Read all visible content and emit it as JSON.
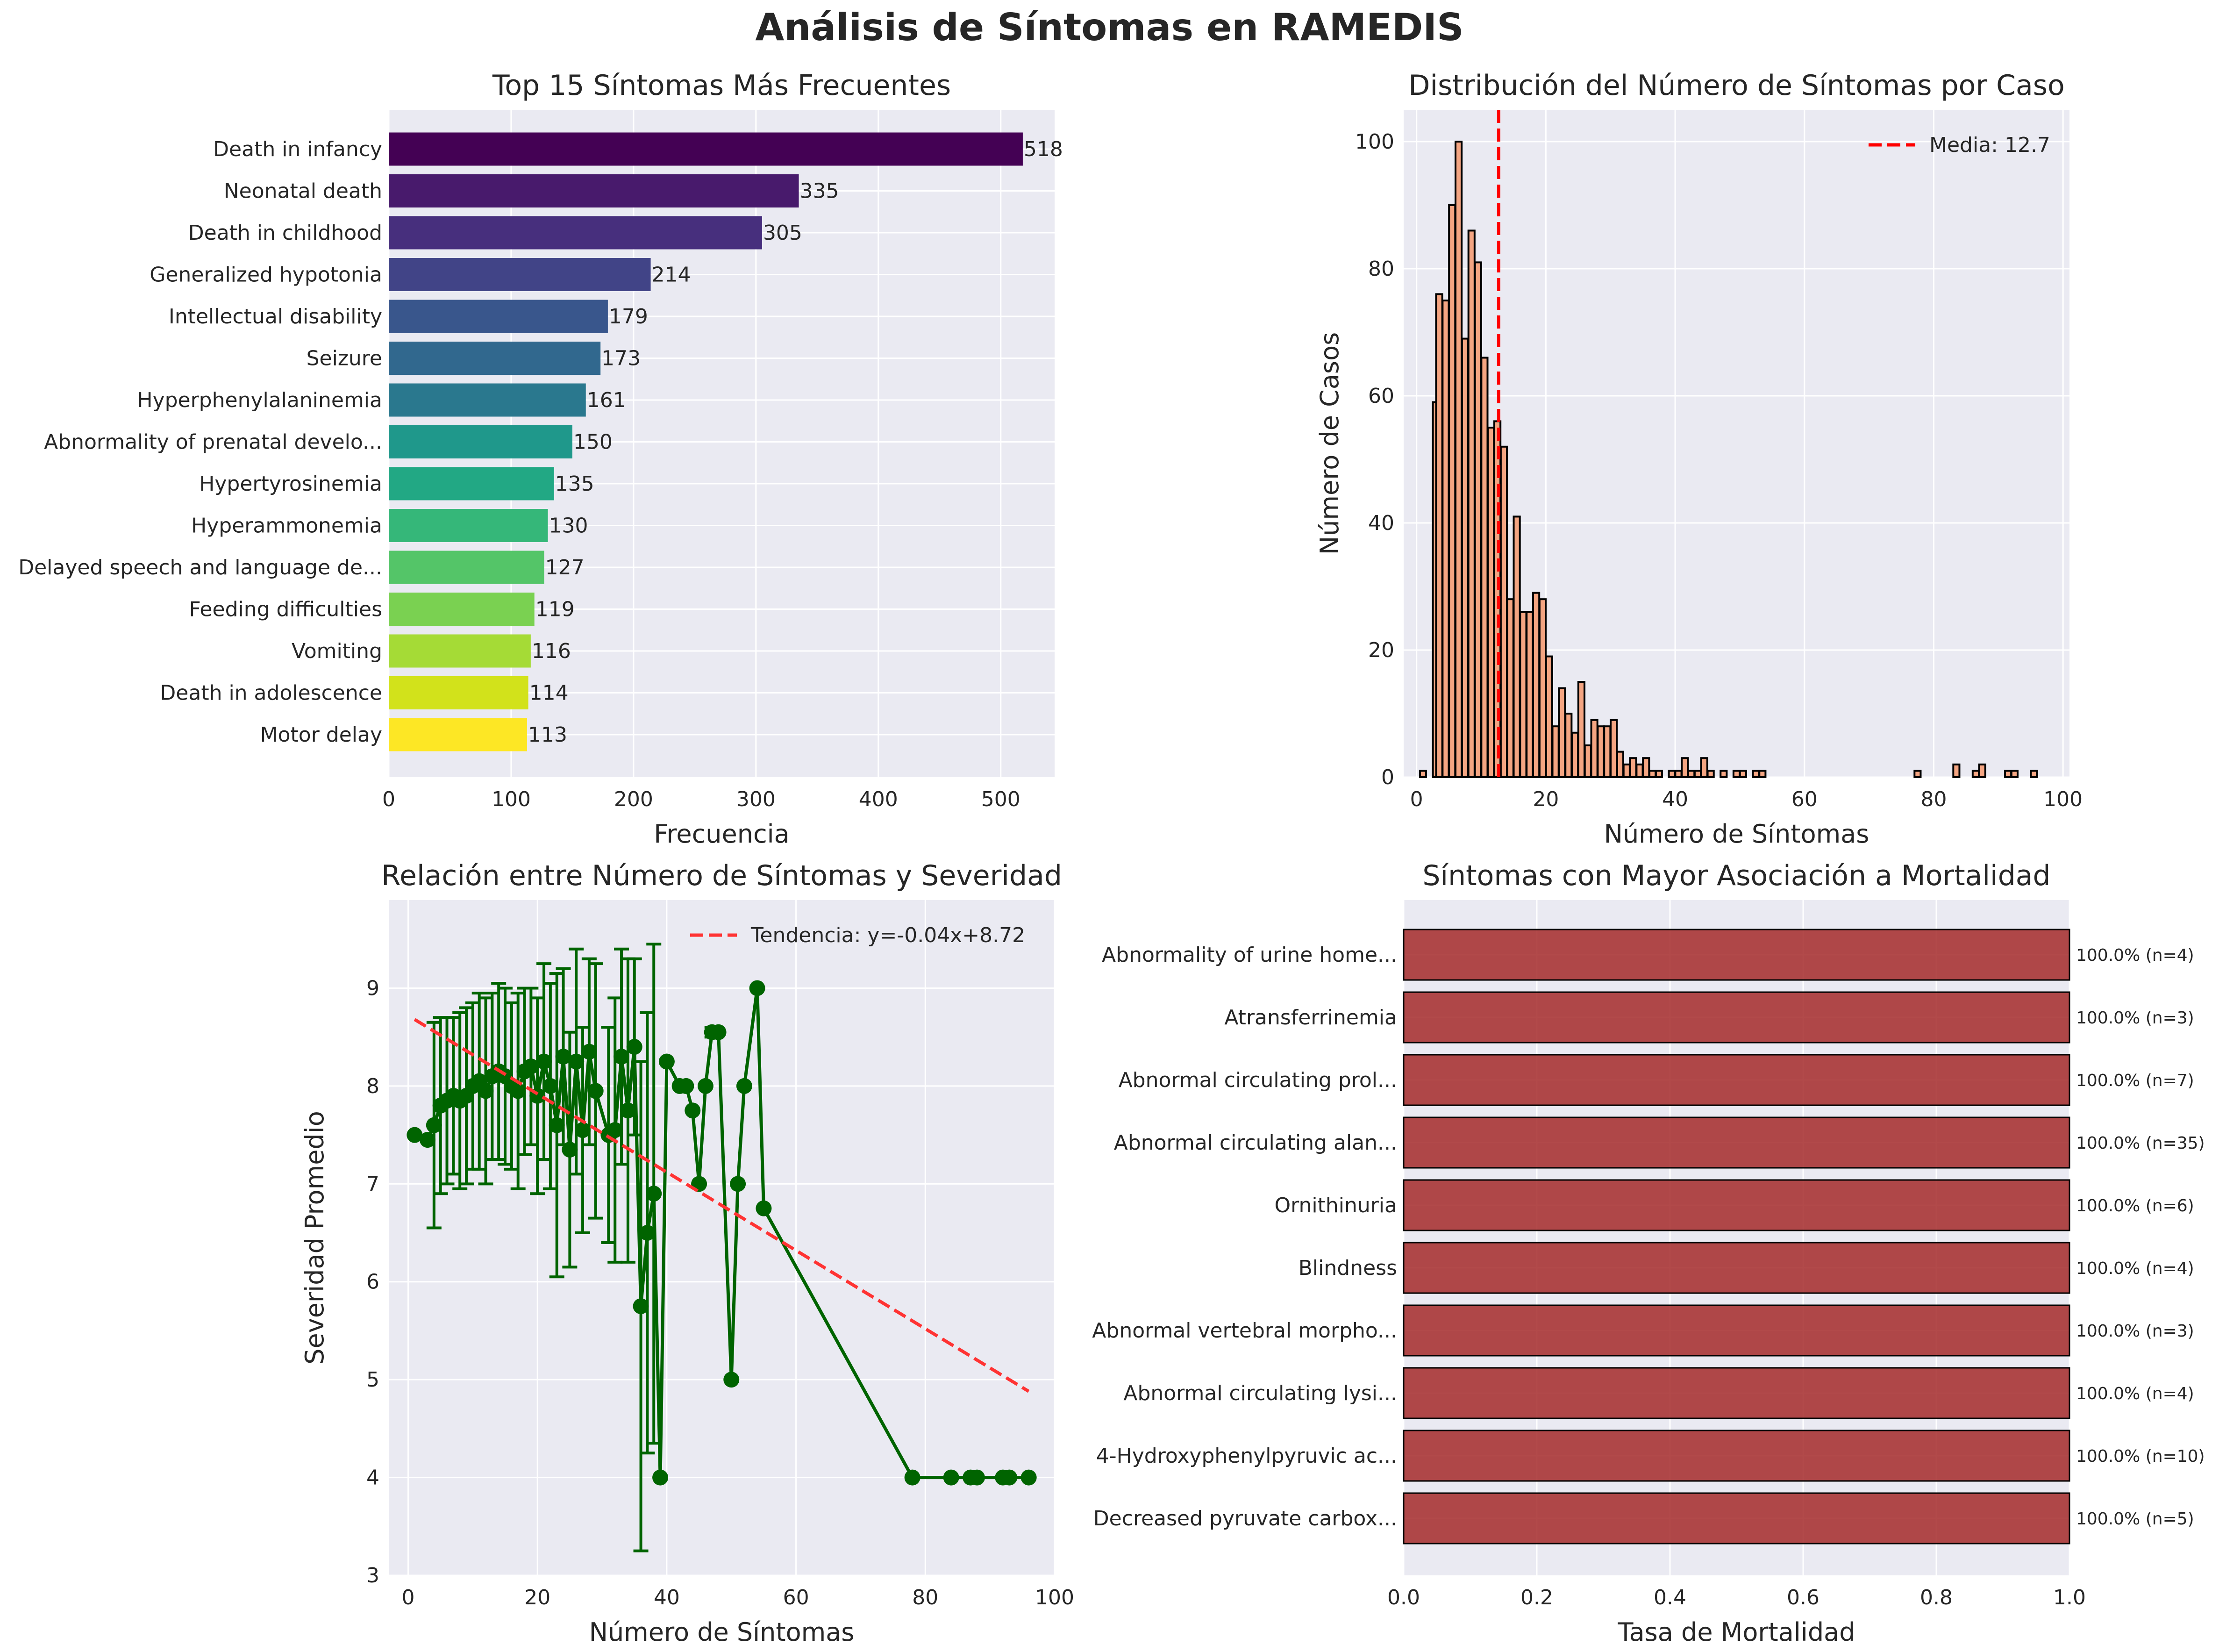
{
  "figure_title": "Análisis de Síntomas en RAMEDIS",
  "colors": {
    "panel_bg": "#EAEAF2",
    "grid": "#FFFFFF",
    "hist_fill": "#F4A582",
    "hist_edge": "#000000",
    "mean_line": "#FF0000",
    "scatter": "#006400",
    "trend": "#FF3333",
    "mortality_bar": "#A52A2A",
    "viridis": [
      "#440154",
      "#481A6C",
      "#472F7D",
      "#414487",
      "#39568C",
      "#31688E",
      "#2A788E",
      "#23888E",
      "#1F988B",
      "#22A884",
      "#35B779",
      "#54C568",
      "#7AD151",
      "#A5DB36",
      "#D2E21B",
      "#FDE725"
    ]
  },
  "chart_data": [
    {
      "type": "bar",
      "orientation": "horizontal",
      "title": "Top 15 Síntomas Más Frecuentes",
      "xlabel": "Frecuencia",
      "ylabel": "",
      "xlim": [
        0,
        544
      ],
      "xticks": [
        0,
        100,
        200,
        300,
        400,
        500
      ],
      "grid": true,
      "categories": [
        "Death in infancy",
        "Neonatal death",
        "Death in childhood",
        "Generalized hypotonia",
        "Intellectual disability",
        "Seizure",
        "Hyperphenylalaninemia",
        "Abnormality of prenatal develo...",
        "Hypertyrosinemia",
        "Hyperammonemia",
        "Delayed speech and language de...",
        "Feeding difficulties",
        "Vomiting",
        "Death in adolescence",
        "Motor delay"
      ],
      "values": [
        518,
        335,
        305,
        214,
        179,
        173,
        161,
        150,
        135,
        130,
        127,
        119,
        116,
        114,
        113
      ]
    },
    {
      "type": "histogram",
      "title": "Distribución del Número de Síntomas por Caso",
      "xlabel": "Número de Síntomas",
      "ylabel": "Número de Casos",
      "xlim": [
        -2,
        101
      ],
      "ylim": [
        0,
        105
      ],
      "xticks": [
        0,
        20,
        40,
        60,
        80,
        100
      ],
      "yticks": [
        0,
        20,
        40,
        60,
        80,
        100
      ],
      "grid": true,
      "bin_width": 0.95,
      "bins": [
        {
          "x": 1,
          "count": 1
        },
        {
          "x": 3,
          "count": 59
        },
        {
          "x": 3.5,
          "count": 76
        },
        {
          "x": 4.5,
          "count": 75
        },
        {
          "x": 5.5,
          "count": 90
        },
        {
          "x": 6.5,
          "count": 100
        },
        {
          "x": 7.5,
          "count": 69
        },
        {
          "x": 8.5,
          "count": 86
        },
        {
          "x": 9.5,
          "count": 81
        },
        {
          "x": 10.5,
          "count": 66
        },
        {
          "x": 11.5,
          "count": 55
        },
        {
          "x": 12.5,
          "count": 56
        },
        {
          "x": 13.5,
          "count": 52
        },
        {
          "x": 14.5,
          "count": 28
        },
        {
          "x": 15.5,
          "count": 41
        },
        {
          "x": 16.5,
          "count": 26
        },
        {
          "x": 17.5,
          "count": 26
        },
        {
          "x": 18.5,
          "count": 29
        },
        {
          "x": 19.5,
          "count": 28
        },
        {
          "x": 20.5,
          "count": 19
        },
        {
          "x": 21.5,
          "count": 8
        },
        {
          "x": 22.5,
          "count": 14
        },
        {
          "x": 23.5,
          "count": 10
        },
        {
          "x": 24.5,
          "count": 7
        },
        {
          "x": 25.5,
          "count": 15
        },
        {
          "x": 26.5,
          "count": 5
        },
        {
          "x": 27.5,
          "count": 9
        },
        {
          "x": 28.5,
          "count": 8
        },
        {
          "x": 29.5,
          "count": 8
        },
        {
          "x": 30.5,
          "count": 9
        },
        {
          "x": 31.5,
          "count": 4
        },
        {
          "x": 32.5,
          "count": 2
        },
        {
          "x": 33.5,
          "count": 3
        },
        {
          "x": 34.5,
          "count": 2
        },
        {
          "x": 35.5,
          "count": 3
        },
        {
          "x": 36.5,
          "count": 1
        },
        {
          "x": 37.5,
          "count": 1
        },
        {
          "x": 39.5,
          "count": 1
        },
        {
          "x": 40.5,
          "count": 1
        },
        {
          "x": 41.5,
          "count": 3
        },
        {
          "x": 42.5,
          "count": 1
        },
        {
          "x": 43.5,
          "count": 1
        },
        {
          "x": 44.5,
          "count": 3
        },
        {
          "x": 45.5,
          "count": 1
        },
        {
          "x": 47.5,
          "count": 1
        },
        {
          "x": 49.5,
          "count": 1
        },
        {
          "x": 50.5,
          "count": 1
        },
        {
          "x": 52.5,
          "count": 1
        },
        {
          "x": 53.5,
          "count": 1
        },
        {
          "x": 77.5,
          "count": 1
        },
        {
          "x": 83.5,
          "count": 2
        },
        {
          "x": 86.5,
          "count": 1
        },
        {
          "x": 87.5,
          "count": 2
        },
        {
          "x": 91.5,
          "count": 1
        },
        {
          "x": 92.5,
          "count": 1
        },
        {
          "x": 95.5,
          "count": 1
        }
      ],
      "mean": 12.7,
      "legend": "Media: 12.7",
      "legend_position": "top-right"
    },
    {
      "type": "line",
      "title": "Relación entre Número de Síntomas y Severidad",
      "xlabel": "Número de Síntomas",
      "ylabel": "Severidad Promedio",
      "xlim": [
        -3,
        100
      ],
      "ylim": [
        3,
        9.9
      ],
      "xticks": [
        0,
        20,
        40,
        60,
        80,
        100
      ],
      "yticks": [
        3,
        4,
        5,
        6,
        7,
        8,
        9
      ],
      "grid": true,
      "series": [
        {
          "points": [
            {
              "x": 1,
              "y": 7.5,
              "err": 0
            },
            {
              "x": 3,
              "y": 7.45,
              "err": 0
            },
            {
              "x": 4,
              "y": 7.6,
              "err": 1.05
            },
            {
              "x": 5,
              "y": 7.8,
              "err": 0.9
            },
            {
              "x": 6,
              "y": 7.85,
              "err": 0.85
            },
            {
              "x": 7,
              "y": 7.9,
              "err": 0.8
            },
            {
              "x": 8,
              "y": 7.85,
              "err": 0.9
            },
            {
              "x": 9,
              "y": 7.9,
              "err": 0.9
            },
            {
              "x": 10,
              "y": 8.0,
              "err": 0.85
            },
            {
              "x": 11,
              "y": 8.05,
              "err": 0.9
            },
            {
              "x": 12,
              "y": 7.95,
              "err": 0.95
            },
            {
              "x": 13,
              "y": 8.1,
              "err": 0.85
            },
            {
              "x": 14,
              "y": 8.15,
              "err": 0.9
            },
            {
              "x": 15,
              "y": 8.1,
              "err": 0.9
            },
            {
              "x": 16,
              "y": 8.0,
              "err": 0.85
            },
            {
              "x": 17,
              "y": 7.95,
              "err": 1.0
            },
            {
              "x": 18,
              "y": 8.15,
              "err": 0.85
            },
            {
              "x": 19,
              "y": 8.2,
              "err": 0.8
            },
            {
              "x": 20,
              "y": 7.9,
              "err": 1.0
            },
            {
              "x": 21,
              "y": 8.25,
              "err": 1.0
            },
            {
              "x": 22,
              "y": 8.0,
              "err": 1.05
            },
            {
              "x": 23,
              "y": 7.6,
              "err": 1.55
            },
            {
              "x": 24,
              "y": 8.3,
              "err": 0.9
            },
            {
              "x": 25,
              "y": 7.35,
              "err": 1.2
            },
            {
              "x": 26,
              "y": 8.25,
              "err": 1.15
            },
            {
              "x": 27,
              "y": 7.55,
              "err": 1.05
            },
            {
              "x": 28,
              "y": 8.35,
              "err": 0.95
            },
            {
              "x": 29,
              "y": 7.95,
              "err": 1.3
            },
            {
              "x": 31,
              "y": 7.5,
              "err": 1.1
            },
            {
              "x": 32,
              "y": 7.55,
              "err": 1.35
            },
            {
              "x": 33,
              "y": 8.3,
              "err": 1.1
            },
            {
              "x": 34,
              "y": 7.75,
              "err": 1.55
            },
            {
              "x": 35,
              "y": 8.4,
              "err": 0.9
            },
            {
              "x": 36,
              "y": 5.75,
              "err": 2.5
            },
            {
              "x": 37,
              "y": 6.5,
              "err": 2.25
            },
            {
              "x": 38,
              "y": 6.9,
              "err": 2.55
            },
            {
              "x": 39,
              "y": 4.0,
              "err": 0
            },
            {
              "x": 40,
              "y": 8.25,
              "err": 0
            },
            {
              "x": 42,
              "y": 8.0,
              "err": 0
            },
            {
              "x": 43,
              "y": 8.0,
              "err": 0
            },
            {
              "x": 44,
              "y": 7.75,
              "err": 0
            },
            {
              "x": 45,
              "y": 7.0,
              "err": 0
            },
            {
              "x": 46,
              "y": 8.0,
              "err": 0
            },
            {
              "x": 47,
              "y": 8.55,
              "err": 0.05
            },
            {
              "x": 48,
              "y": 8.55,
              "err": 0
            },
            {
              "x": 50,
              "y": 5.0,
              "err": 0
            },
            {
              "x": 51,
              "y": 7.0,
              "err": 0
            },
            {
              "x": 52,
              "y": 8.0,
              "err": 0
            },
            {
              "x": 54,
              "y": 9.0,
              "err": 0
            },
            {
              "x": 55,
              "y": 6.75,
              "err": 0
            },
            {
              "x": 78,
              "y": 4.0,
              "err": 0
            },
            {
              "x": 84,
              "y": 4.0,
              "err": 0
            },
            {
              "x": 87,
              "y": 4.0,
              "err": 0
            },
            {
              "x": 88,
              "y": 4.0,
              "err": 0
            },
            {
              "x": 92,
              "y": 4.0,
              "err": 0
            },
            {
              "x": 93,
              "y": 4.0,
              "err": 0
            },
            {
              "x": 96,
              "y": 4.0,
              "err": 0
            }
          ]
        }
      ],
      "trend": {
        "slope": -0.04,
        "intercept": 8.72,
        "x_range": [
          1,
          96
        ]
      },
      "legend": "Tendencia: y=-0.04x+8.72",
      "legend_position": "top-right"
    },
    {
      "type": "bar",
      "orientation": "horizontal",
      "title": "Síntomas con Mayor Asociación a Mortalidad",
      "xlabel": "Tasa de Mortalidad",
      "ylabel": "",
      "xlim": [
        0,
        1.0
      ],
      "xticks": [
        0.0,
        0.2,
        0.4,
        0.6,
        0.8,
        1.0
      ],
      "xtick_labels": [
        "0.0",
        "0.2",
        "0.4",
        "0.6",
        "0.8",
        "1.0"
      ],
      "grid": true,
      "categories": [
        "Abnormality of urine home...",
        "Atransferrinemia",
        "Abnormal circulating prol...",
        "Abnormal circulating alan...",
        "Ornithinuria",
        "Blindness",
        "Abnormal vertebral morpho...",
        "Abnormal circulating lysi...",
        "4-Hydroxyphenylpyruvic ac...",
        "Decreased pyruvate carbox..."
      ],
      "values": [
        1.0,
        1.0,
        1.0,
        1.0,
        1.0,
        1.0,
        1.0,
        1.0,
        1.0,
        1.0
      ],
      "labels": [
        "100.0% (n=4)",
        "100.0% (n=3)",
        "100.0% (n=7)",
        "100.0% (n=35)",
        "100.0% (n=6)",
        "100.0% (n=4)",
        "100.0% (n=3)",
        "100.0% (n=4)",
        "100.0% (n=10)",
        "100.0% (n=5)"
      ]
    }
  ]
}
